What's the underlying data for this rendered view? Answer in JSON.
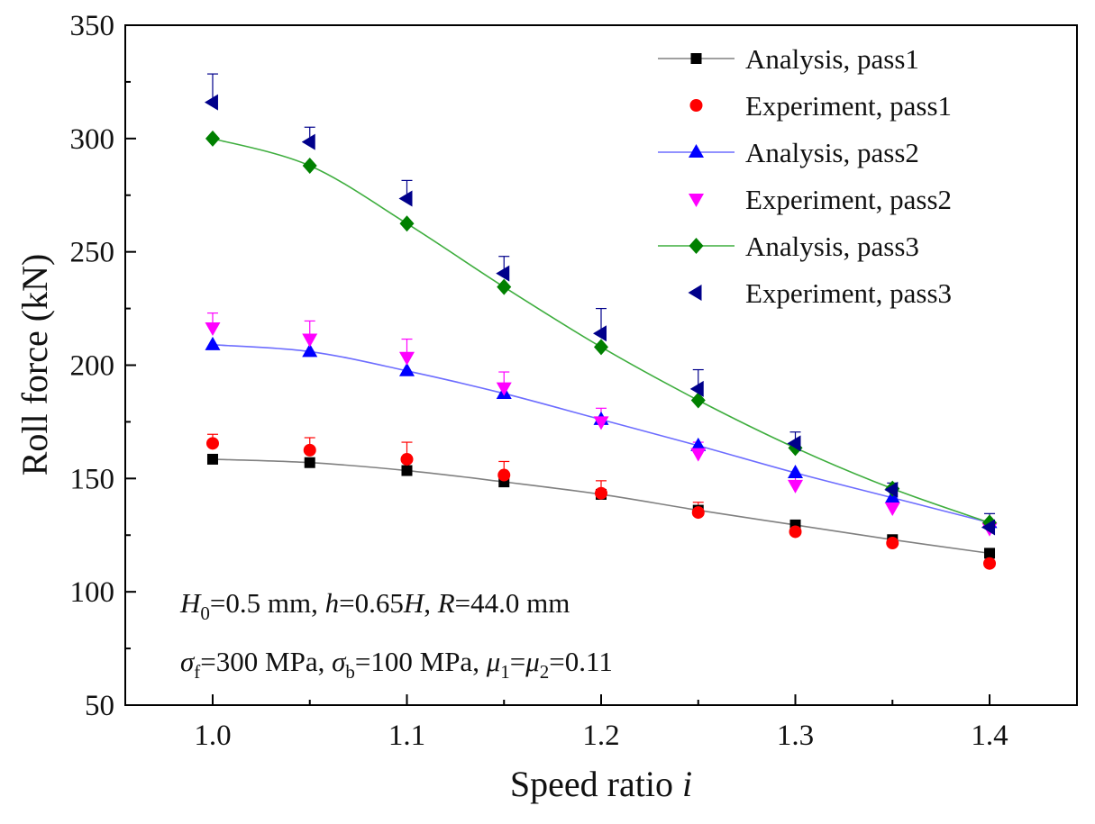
{
  "chart_data": {
    "type": "line",
    "title": "",
    "xlabel": "Speed ratio",
    "xlabel_var": "i",
    "ylabel": "Roll force (kN)",
    "xlim": [
      0.955,
      1.445
    ],
    "ylim": [
      50,
      350
    ],
    "xticks": [
      1.0,
      1.1,
      1.2,
      1.3,
      1.4
    ],
    "xtick_labels": [
      "1.0",
      "1.1",
      "1.2",
      "1.3",
      "1.4"
    ],
    "yticks": [
      50,
      100,
      150,
      200,
      250,
      300,
      350
    ],
    "ytick_labels": [
      "50",
      "100",
      "150",
      "200",
      "250",
      "300",
      "350"
    ],
    "x": [
      1.0,
      1.05,
      1.1,
      1.15,
      1.2,
      1.25,
      1.3,
      1.35,
      1.4
    ],
    "grid": false,
    "legend_position": "top-right",
    "series": [
      {
        "name": "Analysis, pass1",
        "kind": "analysis",
        "marker": "square",
        "color": "#000000",
        "line_color": "#808080",
        "values": [
          158.5,
          157.0,
          153.5,
          148.5,
          143.0,
          136.0,
          129.5,
          123.0,
          117.0
        ]
      },
      {
        "name": "Experiment, pass1",
        "kind": "experiment",
        "marker": "circle",
        "color": "#ff0000",
        "values": [
          165.5,
          162.5,
          158.5,
          151.5,
          143.5,
          135.0,
          126.5,
          121.5,
          112.5
        ],
        "errors": [
          4,
          5.5,
          7.5,
          6,
          5.5,
          4.5,
          4,
          2,
          4
        ]
      },
      {
        "name": "Analysis, pass2",
        "kind": "analysis",
        "marker": "triangle-up",
        "color": "#0000ff",
        "line_color": "#6d6dff",
        "values": [
          209.0,
          206.0,
          197.5,
          187.5,
          176.0,
          164.5,
          152.5,
          141.5,
          130.5
        ]
      },
      {
        "name": "Experiment, pass2",
        "kind": "experiment",
        "marker": "triangle-down",
        "color": "#ff00ff",
        "values": [
          216.5,
          211.5,
          203.5,
          190.0,
          175.0,
          161.0,
          147.0,
          137.0,
          128.0
        ],
        "errors": [
          6.5,
          8,
          8,
          7,
          6,
          5,
          4,
          3,
          3
        ]
      },
      {
        "name": "Analysis, pass3",
        "kind": "analysis",
        "marker": "diamond",
        "color": "#008000",
        "line_color": "#3fae3f",
        "values": [
          300.0,
          288.0,
          262.5,
          234.5,
          208.0,
          184.5,
          163.5,
          145.5,
          130.5
        ]
      },
      {
        "name": "Experiment, pass3",
        "kind": "experiment",
        "marker": "triangle-left",
        "color": "#00008b",
        "values": [
          316.0,
          298.5,
          273.5,
          240.5,
          214.0,
          189.5,
          165.5,
          145.0,
          128.5
        ],
        "errors": [
          12.5,
          6.5,
          8,
          7.5,
          11,
          8.5,
          5,
          3,
          6
        ]
      }
    ],
    "annotations": [
      "H0=0.5 mm, h=0.65H, R=44.0 mm",
      "σf=300 MPa, σb=100 MPa, μ1=μ2=0.11"
    ]
  }
}
